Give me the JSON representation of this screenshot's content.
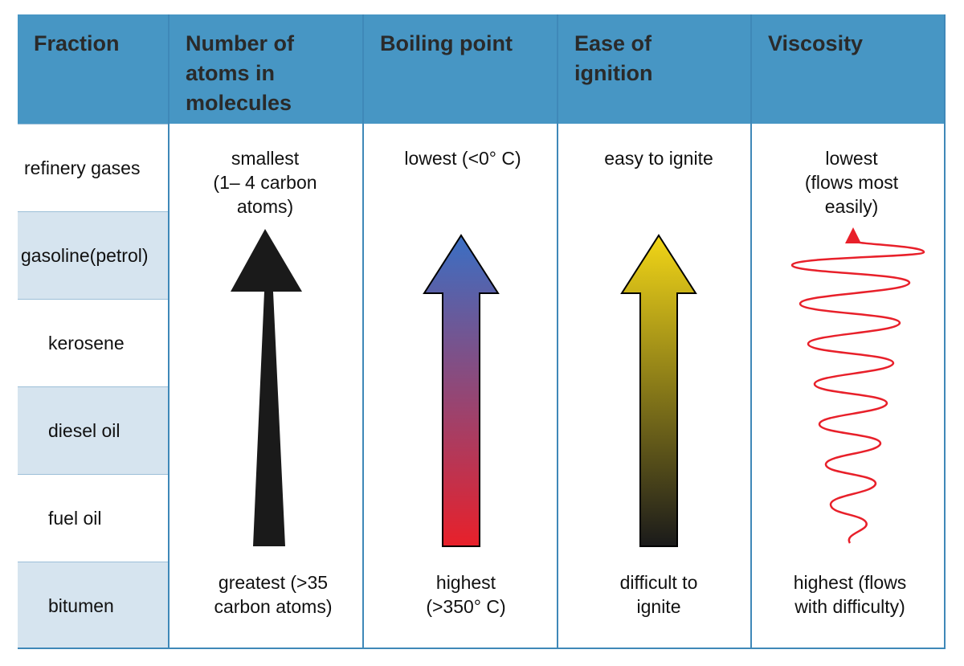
{
  "headers": [
    "Fraction",
    "Number of atoms in molecules",
    "Boiling point",
    "Ease of ignition",
    "Viscosity"
  ],
  "fractions": [
    "refinery gases",
    "gasoline(petrol)",
    "kerosene",
    "diesel oil",
    "fuel oil",
    "bitumen"
  ],
  "atoms": {
    "top": [
      "smallest",
      "(1– 4 carbon",
      "atoms)"
    ],
    "bottom": [
      "greatest (>35",
      "carbon atoms)"
    ]
  },
  "boiling": {
    "top": [
      "lowest (<0° C)"
    ],
    "bottom": [
      "highest",
      "(>350° C)"
    ]
  },
  "ignition": {
    "top": [
      "easy to ignite"
    ],
    "bottom": [
      "difficult to",
      "ignite"
    ]
  },
  "viscosity": {
    "top": [
      "lowest",
      "(flows most",
      "easily)"
    ],
    "bottom": [
      "highest (flows",
      "with difficulty)"
    ]
  },
  "colors": {
    "header_bg": "#4796c4",
    "row_shade": "#d6e4ef",
    "atoms_arrow": "#1a1a1a",
    "boiling_top": "#3a6fc4",
    "boiling_bottom": "#e8202a",
    "ignition_top": "#f2d617",
    "ignition_bottom": "#1a1a1a",
    "viscosity_line": "#e8202a"
  }
}
